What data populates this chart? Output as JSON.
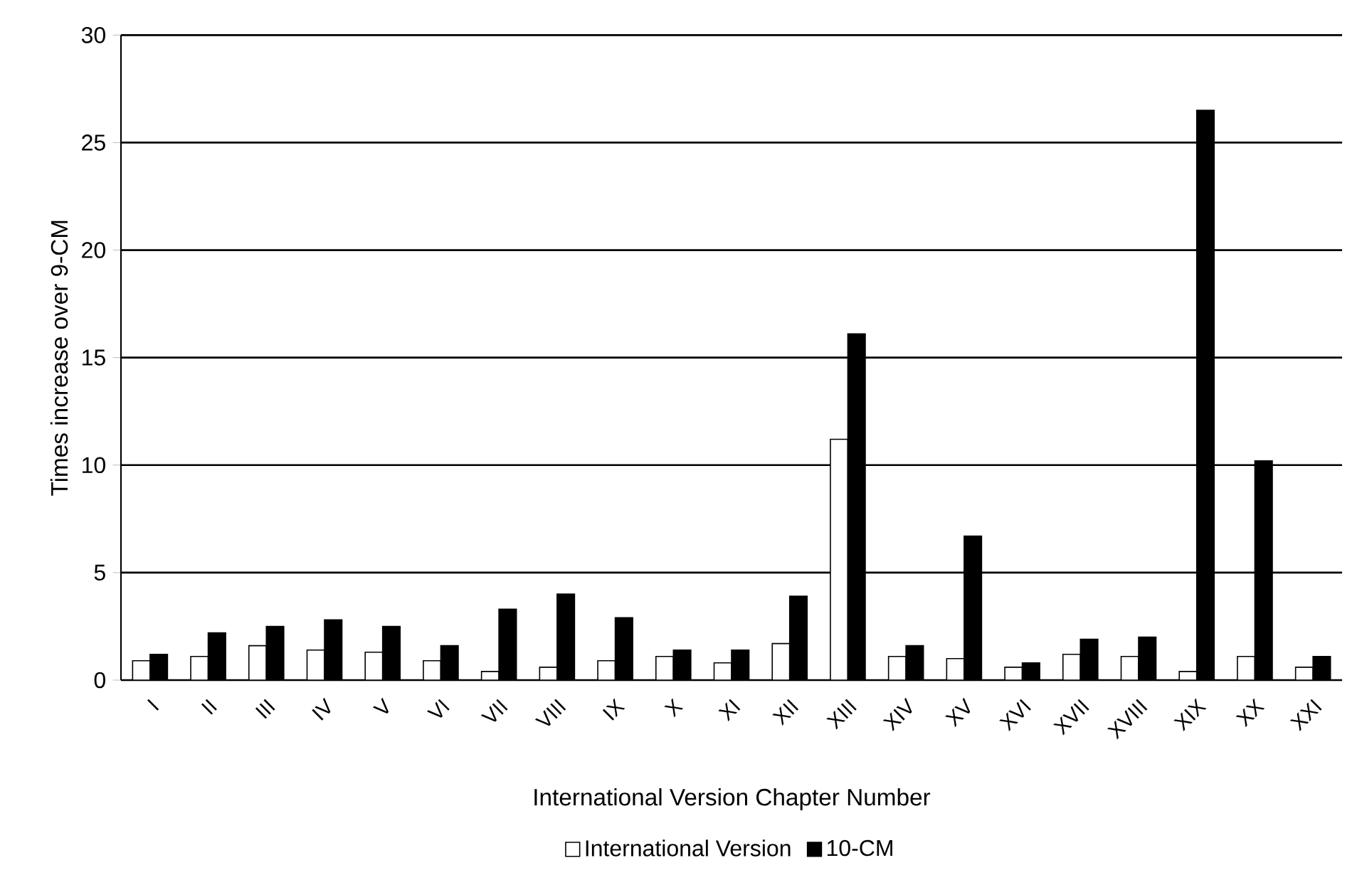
{
  "chart_data": {
    "type": "bar",
    "xlabel": "International Version Chapter Number",
    "ylabel": "Times increase over 9-CM",
    "categories": [
      "I",
      "II",
      "III",
      "IV",
      "V",
      "VI",
      "VII",
      "VIII",
      "IX",
      "X",
      "XI",
      "XII",
      "XIII",
      "XIV",
      "XV",
      "XVI",
      "XVII",
      "XVIII",
      "XIX",
      "XX",
      "XXI"
    ],
    "series": [
      {
        "name": "International Version",
        "color": "#ffffff",
        "values": [
          0.9,
          1.1,
          1.6,
          1.4,
          1.3,
          0.9,
          0.4,
          0.6,
          0.9,
          1.1,
          0.8,
          1.7,
          11.2,
          1.1,
          1.0,
          0.6,
          1.2,
          1.1,
          0.4,
          1.1,
          0.6
        ]
      },
      {
        "name": "10-CM",
        "color": "#000000",
        "values": [
          1.2,
          2.2,
          2.5,
          2.8,
          2.5,
          1.6,
          3.3,
          4.0,
          2.9,
          1.4,
          1.4,
          3.9,
          16.1,
          1.6,
          6.7,
          0.8,
          1.9,
          2.0,
          26.5,
          10.2,
          1.1
        ]
      }
    ],
    "ylim": [
      0,
      30
    ],
    "yticks": [
      0,
      5,
      10,
      15,
      20,
      25,
      30
    ],
    "grid": "y",
    "legend": "bottom"
  }
}
